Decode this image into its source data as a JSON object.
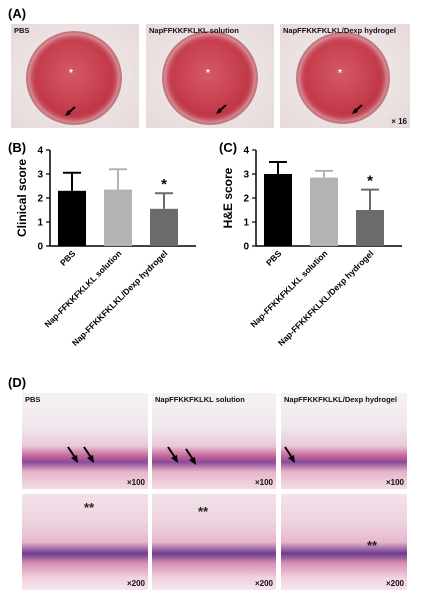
{
  "panels": {
    "a": "(A)",
    "b": "(B)",
    "c": "(C)",
    "d": "(D)"
  },
  "panelA": {
    "captions": [
      "PBS",
      "NapFFKKFKLKL solution",
      "NapFFKKFKLKL/Dexp hydrogel"
    ],
    "magnification": "× 16"
  },
  "panelD": {
    "captions": [
      "PBS",
      "NapFFKKFKLKL solution",
      "NapFFKKFKLKL/Dexp hydrogel"
    ],
    "row1_mag": "×100",
    "row2_mag": "×200",
    "stars": "**"
  },
  "chart_data": [
    {
      "type": "bar",
      "ylabel": "Clinical score",
      "ylim": [
        0,
        4
      ],
      "yticks": [
        "0",
        "1",
        "2",
        "3",
        "4"
      ],
      "categories": [
        "PBS",
        "Nap-FFKKFKLKL solution",
        "Nap-FFKKFKLKL/Dexp hydrogel"
      ],
      "values": [
        2.3,
        2.35,
        1.55
      ],
      "errors": [
        0.75,
        0.85,
        0.65
      ],
      "colors": [
        "#000000",
        "#b3b3b3",
        "#6b6b6b"
      ],
      "significance": [
        "",
        "",
        "*"
      ]
    },
    {
      "type": "bar",
      "ylabel": "H&E score",
      "ylim": [
        0,
        4
      ],
      "yticks": [
        "0",
        "1",
        "2",
        "3",
        "4"
      ],
      "categories": [
        "PBS",
        "Nap-FFKKFKLKL solution",
        "Nap-FFKKFKLKL/Dexp hydrogel"
      ],
      "values": [
        3.0,
        2.85,
        1.5
      ],
      "errors": [
        0.5,
        0.28,
        0.85
      ],
      "colors": [
        "#000000",
        "#b3b3b3",
        "#6b6b6b"
      ],
      "significance": [
        "",
        "",
        "*"
      ]
    }
  ]
}
